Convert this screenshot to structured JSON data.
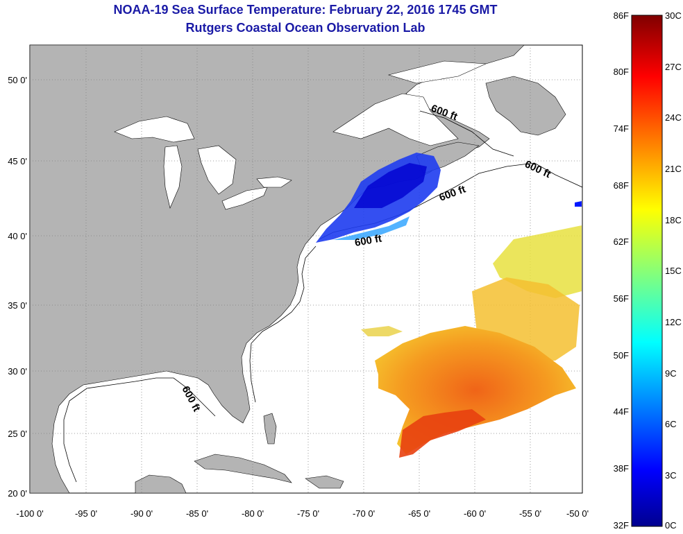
{
  "title": {
    "line1": "NOAA-19 Sea Surface Temperature:  February 22, 2016 1745 GMT",
    "line2": "Rutgers Coastal Ocean Observation Lab"
  },
  "map": {
    "lon_labels": [
      "-100 0'",
      "-95 0'",
      "-90 0'",
      "-85 0'",
      "-80 0'",
      "-75 0'",
      "-70 0'",
      "-65 0'",
      "-60 0'",
      "-55 0'",
      "-50 0'"
    ],
    "lat_labels": [
      "50 0'",
      "45 0'",
      "40 0'",
      "35 0'",
      "30 0'",
      "25 0'",
      "20 0'"
    ],
    "contour_label": "600 ft",
    "colors": {
      "land": "#b4b4b4",
      "ocean": "#ffffff",
      "grid": "#808080"
    }
  },
  "colorbar": {
    "fahrenheit": [
      "86F",
      "80F",
      "74F",
      "68F",
      "62F",
      "56F",
      "50F",
      "44F",
      "38F",
      "32F"
    ],
    "celsius": [
      "30C",
      "27C",
      "24C",
      "21C",
      "18C",
      "15C",
      "12C",
      "9C",
      "6C",
      "3C",
      "0C"
    ]
  }
}
